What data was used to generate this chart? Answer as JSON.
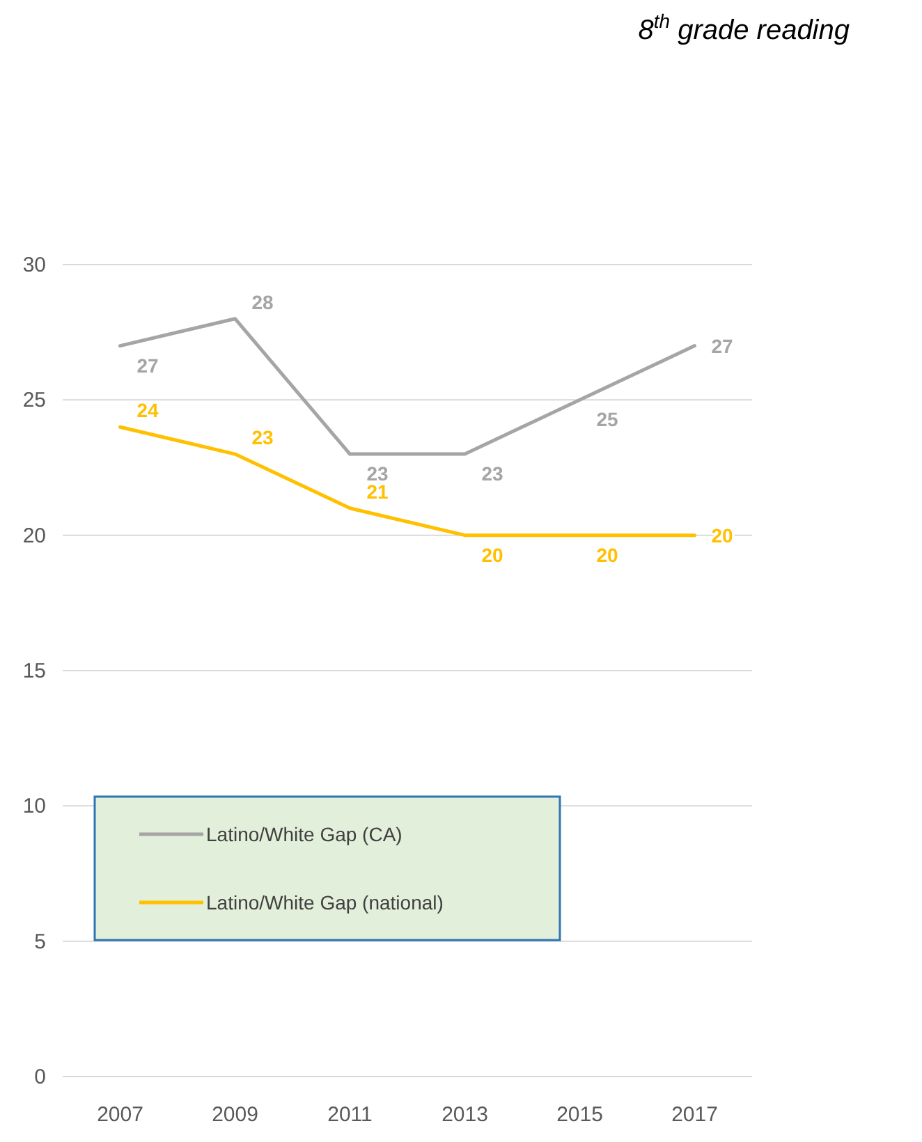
{
  "chart_data": {
    "type": "line",
    "title": "8$^{th}$ grade  reading",
    "categories": [
      "2007",
      "2009",
      "2011",
      "2013",
      "2015",
      "2017"
    ],
    "series": [
      {
        "name": "Latino/White Gap (CA)",
        "color": "#a5a5a5",
        "values": [
          27,
          28,
          23,
          23,
          25,
          27
        ]
      },
      {
        "name": "Latino/White Gap (national)",
        "color": "#ffc000",
        "values": [
          24,
          23,
          21,
          20,
          20,
          20
        ]
      }
    ],
    "ylim": [
      0,
      30
    ],
    "yticks": [
      0,
      5,
      10,
      15,
      20,
      25,
      30
    ],
    "grid": "y",
    "legend": "bottom left",
    "data_labels": true,
    "marker": "none",
    "line_style": "solid"
  }
}
